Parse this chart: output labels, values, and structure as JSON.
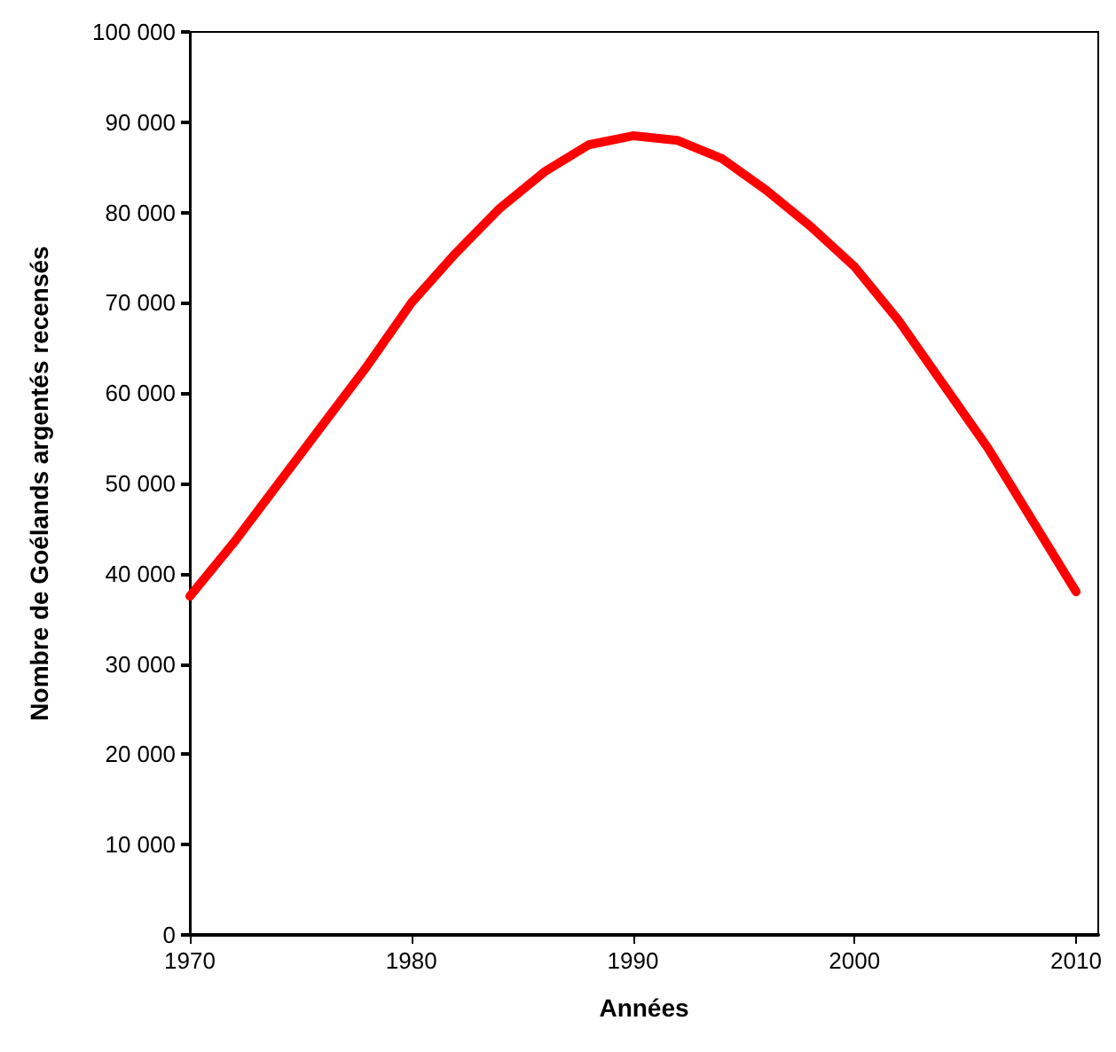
{
  "chart_data": {
    "type": "line",
    "xlabel": "Années",
    "ylabel": "Nombre de Goélands argentés recensés",
    "x": [
      1970,
      1972,
      1974,
      1976,
      1978,
      1980,
      1982,
      1984,
      1986,
      1988,
      1990,
      1992,
      1994,
      1996,
      1998,
      2000,
      2002,
      2004,
      2006,
      2008,
      2010
    ],
    "series": [
      {
        "color": "#ff0000",
        "values": [
          37500,
          43500,
          50000,
          56500,
          63000,
          70000,
          75500,
          80500,
          84500,
          87500,
          88500,
          88000,
          86000,
          82500,
          78500,
          74000,
          68000,
          61000,
          54000,
          46000,
          38000
        ]
      }
    ],
    "xlim": [
      1970,
      2011
    ],
    "xticks": [
      1970,
      1980,
      1990,
      2000,
      2010
    ],
    "ylim": [
      0,
      100000
    ],
    "yticks": [
      0,
      {
        "value": 10000,
        "label": "10 000"
      },
      {
        "value": 20000,
        "label": "20 000"
      },
      {
        "value": 30000,
        "label": "30 000"
      },
      {
        "value": 40000,
        "label": "40 000"
      },
      {
        "value": 50000,
        "label": "50 000"
      },
      {
        "value": 60000,
        "label": "60 000"
      },
      {
        "value": 70000,
        "label": "70 000"
      },
      {
        "value": 80000,
        "label": "80 000"
      },
      {
        "value": 90000,
        "label": "90 000"
      },
      {
        "value": 100000,
        "label": "100 000"
      }
    ],
    "grid": false,
    "marker": "none",
    "line_style": "solid"
  }
}
